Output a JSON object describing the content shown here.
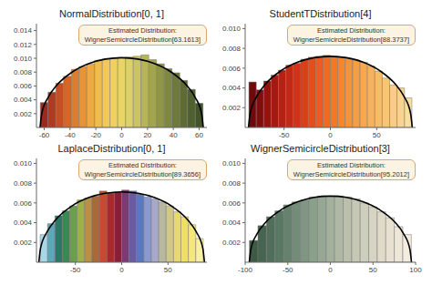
{
  "chart_data": [
    {
      "type": "histogram",
      "title": "NormalDistribution[0, 1]",
      "annotation": "Estimated Distribution:\nWignerSemicircleDistribution[63.1613]",
      "bins": [
        -63,
        -57,
        -51,
        -45,
        -39,
        -33,
        -27,
        -21,
        -15,
        -9,
        -3,
        3,
        9,
        15,
        21,
        27,
        33,
        39,
        45,
        51,
        57,
        63
      ],
      "values": [
        0.0036,
        0.0051,
        0.0064,
        0.0074,
        0.0084,
        0.0088,
        0.0092,
        0.0097,
        0.0099,
        0.01,
        0.0101,
        0.0102,
        0.0103,
        0.0105,
        0.0098,
        0.0092,
        0.0085,
        0.0079,
        0.0068,
        0.0055,
        0.0035
      ],
      "colors": [
        "#9c2a1c",
        "#b03a1e",
        "#c44f22",
        "#d46628",
        "#de7c2e",
        "#e69436",
        "#ecaa40",
        "#f0bc4a",
        "#f2c956",
        "#f0d060",
        "#ead46a",
        "#dcd06a",
        "#cac462",
        "#b6b458",
        "#a2a44e",
        "#909646",
        "#7e8840",
        "#6e7a3a",
        "#5e6c34",
        "#50602e",
        "#44542a"
      ],
      "curve": {
        "x": [
          -63.2,
          -61.9,
          -56.8,
          -50.5,
          -37.9,
          -25.3,
          -12.6,
          0,
          12.6,
          25.3,
          37.9,
          50.5,
          56.8,
          61.9,
          63.2
        ],
        "values": [
          0,
          0.00201,
          0.0044,
          0.00605,
          0.00806,
          0.00924,
          0.00988,
          0.01008,
          0.00988,
          0.00924,
          0.00806,
          0.00605,
          0.0044,
          0.00201,
          0
        ]
      },
      "xlim": [
        -66,
        66
      ],
      "xticks": [
        -60,
        -40,
        -20,
        0,
        20,
        40,
        60
      ],
      "ylim": [
        0,
        0.015
      ],
      "yticks": [
        0.002,
        0.004,
        0.006,
        0.008,
        {
          "value": 0.01,
          "label": "0.010"
        },
        0.012,
        0.014
      ]
    },
    {
      "type": "histogram",
      "title": "StudentTDistribution[4]",
      "annotation": "Estimated Distribution:\nWignerSemicircleDistribution[88.3737]",
      "bins": [
        -88,
        -80,
        -72,
        -64,
        -56,
        -48,
        -40,
        -32,
        -24,
        -16,
        -8,
        0,
        8,
        16,
        24,
        32,
        40,
        48,
        56,
        64,
        72,
        80,
        88
      ],
      "values": [
        0.0046,
        0.0038,
        0.0047,
        0.0053,
        0.0058,
        0.0063,
        0.0065,
        0.0069,
        0.0071,
        0.0072,
        0.0073,
        0.0072,
        0.0071,
        0.007,
        0.0068,
        0.0066,
        0.0062,
        0.0057,
        0.005,
        0.0043,
        0.004,
        0.003
      ],
      "colors": [
        "#6e0a0a",
        "#800e0c",
        "#92140e",
        "#a41a10",
        "#b42212",
        "#c22a14",
        "#cf3416",
        "#da4018",
        "#e44e1a",
        "#ec5c1e",
        "#f26a22",
        "#f47828",
        "#f6862e",
        "#f89236",
        "#f89e42",
        "#f8a84e",
        "#f8b25a",
        "#f8bc68",
        "#f8c476",
        "#f8cc84",
        "#f8d492",
        "#f8dca0"
      ],
      "curve": {
        "x": [
          -88.4,
          -86.6,
          -79.5,
          -70.7,
          -53,
          -35.3,
          -17.7,
          0,
          17.7,
          35.3,
          53,
          70.7,
          79.5,
          86.6,
          88.4
        ],
        "values": [
          0,
          0.00143,
          0.00314,
          0.00432,
          0.00576,
          0.0066,
          0.00706,
          0.0072,
          0.00706,
          0.0066,
          0.00576,
          0.00432,
          0.00314,
          0.00143,
          0
        ]
      },
      "xlim": [
        -92,
        92
      ],
      "xticks": [
        -50,
        0,
        50
      ],
      "ylim": [
        0,
        0.0105
      ],
      "yticks": [
        0.002,
        0.004,
        0.006,
        0.008,
        {
          "value": 0.01,
          "label": "0.010"
        }
      ]
    },
    {
      "type": "histogram",
      "title": "LaplaceDistribution[0, 1]",
      "annotation": "Estimated Distribution:\nWignerSemicircleDistribution[89.3656]",
      "bins": [
        -88,
        -80,
        -72,
        -64,
        -56,
        -48,
        -40,
        -32,
        -24,
        -16,
        -8,
        0,
        8,
        16,
        24,
        32,
        40,
        48,
        56,
        64,
        72,
        80,
        88
      ],
      "values": [
        0.0028,
        0.0039,
        0.0047,
        0.0052,
        0.0057,
        0.0063,
        0.0065,
        0.0067,
        0.0072,
        0.007,
        0.0071,
        0.0073,
        0.0072,
        0.0069,
        0.0066,
        0.0064,
        0.0061,
        0.0057,
        0.0051,
        0.0046,
        0.0038,
        0.0024
      ],
      "colors": [
        "#a8d8e8",
        "#5aa8b8",
        "#2a7868",
        "#3a8a50",
        "#6aa048",
        "#a0b048",
        "#b89048",
        "#a86a3a",
        "#c84830",
        "#a82a2a",
        "#8a2038",
        "#7a3a78",
        "#6a5aa0",
        "#5a78c0",
        "#8a9ad0",
        "#a8a8c8",
        "#b8b8a0",
        "#d0c888",
        "#e8d870",
        "#f0e060",
        "#f4e878",
        "#f8f0a0"
      ],
      "curve": {
        "x": [
          -89.4,
          -87.6,
          -80.4,
          -71.5,
          -53.6,
          -35.7,
          -17.9,
          0,
          17.9,
          35.7,
          53.6,
          71.5,
          80.4,
          87.6,
          89.4
        ],
        "values": [
          0,
          0.00142,
          0.0031,
          0.00427,
          0.0057,
          0.00653,
          0.00698,
          0.00712,
          0.00698,
          0.00653,
          0.0057,
          0.00427,
          0.0031,
          0.00142,
          0
        ]
      },
      "xlim": [
        -92,
        92
      ],
      "xticks": [
        -50,
        0,
        50
      ],
      "ylim": [
        0,
        0.0105
      ],
      "yticks": [
        0.002,
        0.004,
        0.006,
        0.008,
        {
          "value": 0.01,
          "label": "0.010"
        }
      ]
    },
    {
      "type": "histogram",
      "title": "WignerSemicircleDistribution[3]",
      "annotation": "Estimated Distribution:\nWignerSemicircleDistribution[95.2012]",
      "bins": [
        -95,
        -85,
        -75,
        -65,
        -55,
        -45,
        -35,
        -25,
        -15,
        -5,
        5,
        15,
        25,
        35,
        45,
        55,
        65,
        75,
        85,
        95
      ],
      "values": [
        0.0022,
        0.0037,
        0.0046,
        0.0052,
        0.0058,
        0.0061,
        0.0063,
        0.0066,
        0.0067,
        0.0066,
        0.0067,
        0.0066,
        0.0064,
        0.006,
        0.0056,
        0.0051,
        0.0045,
        0.0036,
        0.0028
      ],
      "colors": [
        "#3c5a44",
        "#466450",
        "#506e5a",
        "#5a7864",
        "#66826e",
        "#728c78",
        "#7e9682",
        "#8aa08a",
        "#96a894",
        "#a2b09c",
        "#aeb8a4",
        "#bac0ac",
        "#c4c8b4",
        "#cecebc",
        "#d8d4c4",
        "#e0dac8",
        "#e8e0d0",
        "#eee6d6",
        "#f4ecde"
      ],
      "curve": {
        "x": [
          -95.2,
          -93.3,
          -85.7,
          -76.2,
          -57.1,
          -38.1,
          -19,
          0,
          19,
          38.1,
          57.1,
          76.2,
          85.7,
          93.3,
          95.2
        ],
        "values": [
          0,
          0.00133,
          0.00292,
          0.00401,
          0.00535,
          0.00613,
          0.00656,
          0.00669,
          0.00656,
          0.00613,
          0.00535,
          0.00401,
          0.00292,
          0.00133,
          0
        ]
      },
      "xlim": [
        -100,
        100
      ],
      "xticks": [
        -100,
        -50,
        0,
        50,
        100
      ],
      "ylim": [
        0,
        0.0105
      ],
      "yticks": [
        0.002,
        0.004,
        0.006,
        0.008,
        {
          "value": 0.01,
          "label": "0.010"
        }
      ]
    }
  ]
}
